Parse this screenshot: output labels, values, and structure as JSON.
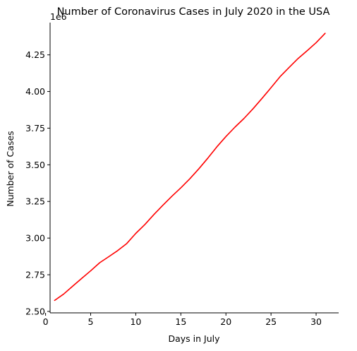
{
  "chart_data": {
    "type": "line",
    "title": "Number of Coronavirus Cases in July 2020 in the USA",
    "xlabel": "Days in July",
    "ylabel": "Number of Cases",
    "y_offset_label": "1e6",
    "xlim": [
      0.5,
      32.5
    ],
    "ylim": [
      2.49,
      4.47
    ],
    "x_ticks": [
      0,
      5,
      10,
      15,
      20,
      25,
      30
    ],
    "x_tick_labels": [
      "0",
      "5",
      "10",
      "15",
      "20",
      "25",
      "30"
    ],
    "y_ticks": [
      2.5,
      2.75,
      3.0,
      3.25,
      3.5,
      3.75,
      4.0,
      4.25
    ],
    "y_tick_labels": [
      "2.50",
      "2.75",
      "3.00",
      "3.25",
      "3.50",
      "3.75",
      "4.00",
      "4.25"
    ],
    "grid": false,
    "spines": [
      "left",
      "bottom"
    ],
    "series": [
      {
        "color": "#ff0000",
        "x": [
          1,
          2,
          3,
          4,
          5,
          6,
          7,
          8,
          9,
          10,
          11,
          12,
          13,
          14,
          15,
          16,
          17,
          18,
          19,
          20,
          21,
          22,
          23,
          24,
          25,
          26,
          27,
          28,
          29,
          30,
          31
        ],
        "y": [
          2.575,
          2.618,
          2.672,
          2.725,
          2.777,
          2.832,
          2.873,
          2.915,
          2.963,
          3.032,
          3.092,
          3.16,
          3.224,
          3.285,
          3.343,
          3.405,
          3.473,
          3.546,
          3.623,
          3.693,
          3.757,
          3.816,
          3.882,
          3.953,
          4.026,
          4.101,
          4.164,
          4.225,
          4.278,
          4.333,
          4.397
        ]
      }
    ]
  }
}
